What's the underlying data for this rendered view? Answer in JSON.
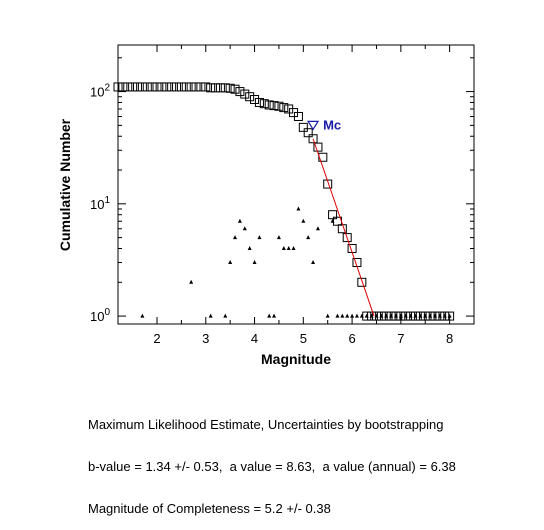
{
  "chart_data": {
    "type": "scatter",
    "xlabel": "Magnitude",
    "ylabel": "Cumulative Number",
    "xlim": [
      1.2,
      8.5
    ],
    "ylim": [
      0.85,
      260
    ],
    "y_scale": "log",
    "x_ticks": [
      "2",
      "3",
      "4",
      "5",
      "6",
      "7",
      "8"
    ],
    "x_tick_values": [
      2,
      3,
      4,
      5,
      6,
      7,
      8
    ],
    "y_ticks": [
      {
        "value": 1,
        "base": "10",
        "exp": "0"
      },
      {
        "value": 10,
        "base": "10",
        "exp": "1"
      },
      {
        "value": 100,
        "base": "10",
        "exp": "2"
      }
    ],
    "grid": false,
    "series": [
      {
        "marker": "square",
        "color": "#000000",
        "x": [
          1.2,
          1.3,
          1.4,
          1.5,
          1.6,
          1.7,
          1.8,
          1.9,
          2.0,
          2.1,
          2.2,
          2.3,
          2.4,
          2.5,
          2.6,
          2.7,
          2.8,
          2.9,
          3.0,
          3.1,
          3.2,
          3.3,
          3.4,
          3.5,
          3.6,
          3.7,
          3.8,
          3.9,
          4.0,
          4.1,
          4.2,
          4.3,
          4.4,
          4.5,
          4.6,
          4.7,
          4.8,
          4.9,
          5.0,
          5.1,
          5.2,
          5.3,
          5.4,
          5.5,
          5.6,
          5.7,
          5.8,
          5.9,
          6.0,
          6.1,
          6.2,
          6.3,
          6.4,
          6.5,
          6.6,
          6.7,
          6.8,
          6.9,
          7.0,
          7.1,
          7.2,
          7.3,
          7.4,
          7.5,
          7.6,
          7.7,
          7.8,
          7.9,
          8.0
        ],
        "y": [
          110,
          110,
          110,
          110,
          110,
          110,
          110,
          110,
          110,
          110,
          110,
          110,
          110,
          110,
          110,
          110,
          110,
          110,
          110,
          108,
          108,
          108,
          108,
          107,
          105,
          100,
          95,
          90,
          85,
          80,
          78,
          76,
          75,
          74,
          72,
          70,
          65,
          60,
          48,
          43,
          38,
          32,
          26,
          15,
          8,
          7,
          6,
          5,
          4,
          3,
          2,
          1,
          1,
          1,
          1,
          1,
          1,
          1,
          1,
          1,
          1,
          1,
          1,
          1,
          1,
          1,
          1,
          1,
          1
        ]
      },
      {
        "marker": "triangle",
        "color": "#000000",
        "x": [
          1.7,
          2.7,
          3.1,
          3.4,
          3.5,
          3.6,
          3.7,
          3.8,
          3.9,
          4.0,
          4.1,
          4.3,
          4.4,
          4.5,
          4.6,
          4.7,
          4.8,
          4.9,
          5.0,
          5.1,
          5.2,
          5.3,
          5.5,
          5.6,
          5.7,
          5.8,
          5.9,
          6.0,
          6.1,
          6.2,
          6.3,
          6.4,
          6.5,
          6.6,
          6.7,
          6.8,
          6.9,
          7.0,
          7.1,
          7.2,
          7.3,
          7.4,
          7.5,
          7.6,
          7.7,
          7.8,
          7.9,
          8.0
        ],
        "y": [
          1,
          2,
          1,
          1,
          3,
          5,
          7,
          6,
          4,
          3,
          5,
          1,
          1,
          5,
          4,
          4,
          4,
          9,
          7,
          5,
          3,
          6,
          1,
          7,
          1,
          1,
          1,
          1,
          1,
          1,
          1,
          1,
          1,
          1,
          1,
          1,
          1,
          1,
          1,
          1,
          1,
          1,
          1,
          1,
          1,
          1,
          1,
          1
        ]
      },
      {
        "marker": "line",
        "color": "#e00000",
        "x": [
          5.2,
          6.45
        ],
        "y": [
          38,
          1
        ]
      }
    ],
    "annotations": [
      {
        "text": "Mc",
        "marker": "inverted-triangle",
        "x": 5.2,
        "y": 50,
        "color": "#1a1aa6"
      }
    ]
  },
  "caption": {
    "line1": "Maximum Likelihood Estimate, Uncertainties by bootstrapping",
    "line2": "b-value = 1.34 +/- 0.53,  a value = 8.63,  a value (annual) = 6.38",
    "line3": "Magnitude of Completeness = 5.2 +/- 0.38"
  }
}
